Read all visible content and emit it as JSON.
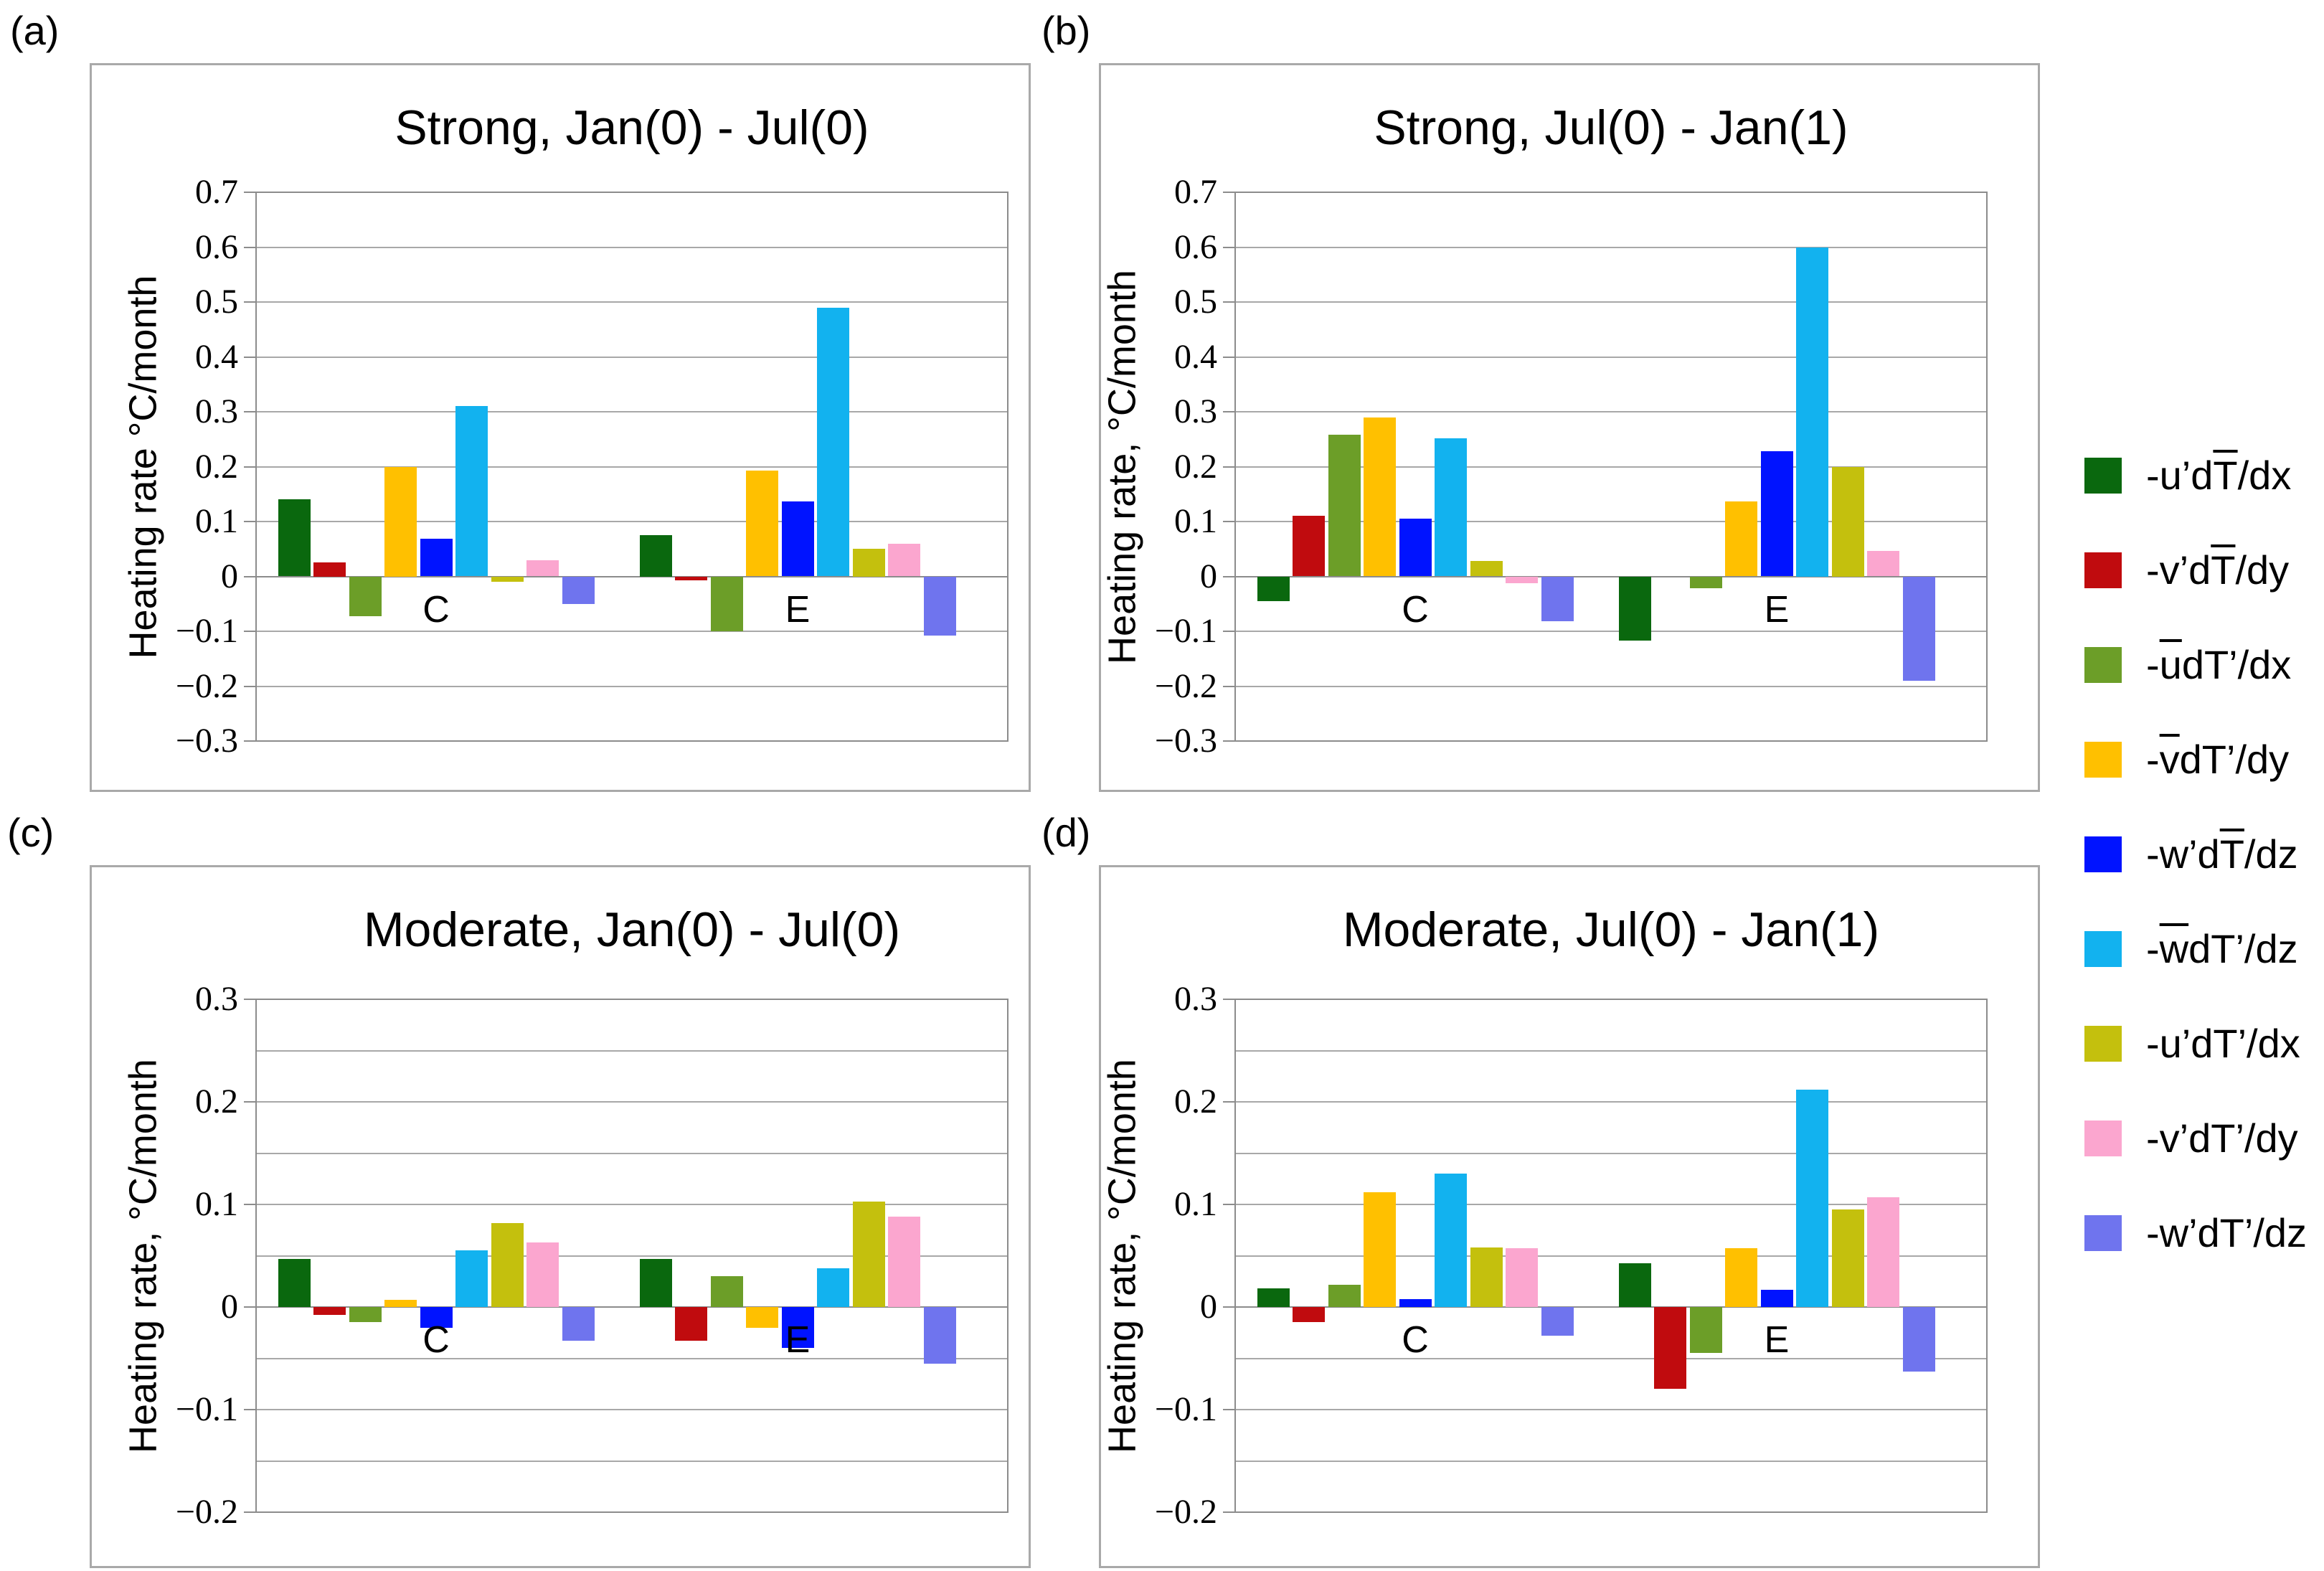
{
  "figure": {
    "background": "#ffffff",
    "gridline_color": "#a8a8a8",
    "axis_color": "#8c8c8c",
    "panel_border_color": "#a9a9a9"
  },
  "chart_data": {
    "type": "bar",
    "legend_position": "right",
    "grid": true,
    "categories": [
      "C",
      "E"
    ],
    "series": [
      {
        "name": "-u’dT̅/dx",
        "color": "#0A680E",
        "label_parts": [
          {
            "t": "-u’d"
          },
          {
            "t": "T",
            "ob": true
          },
          {
            "t": "/dx"
          }
        ]
      },
      {
        "name": "-v’dT̅/dy",
        "color": "#C00B0E",
        "label_parts": [
          {
            "t": "-v’d"
          },
          {
            "t": "T",
            "ob": true
          },
          {
            "t": "/dy"
          }
        ]
      },
      {
        "name": "-u̅dT’/dx",
        "color": "#6C9E28",
        "label_parts": [
          {
            "t": "-"
          },
          {
            "t": "u",
            "ob": true
          },
          {
            "t": "dT’/dx"
          }
        ]
      },
      {
        "name": "-v̅dT’/dy",
        "color": "#FFC000",
        "label_parts": [
          {
            "t": "-"
          },
          {
            "t": "v",
            "ob": true
          },
          {
            "t": "dT’/dy"
          }
        ]
      },
      {
        "name": "-w’dT̅/dz",
        "color": "#0013FF",
        "label_parts": [
          {
            "t": "-w’d"
          },
          {
            "t": "T",
            "ob": true
          },
          {
            "t": "/dz"
          }
        ]
      },
      {
        "name": "-w̅dT’/dz",
        "color": "#12B2EF",
        "label_parts": [
          {
            "t": "-"
          },
          {
            "t": "w",
            "ob": true
          },
          {
            "t": "dT’/dz"
          }
        ]
      },
      {
        "name": "-u’dT’/dx",
        "color": "#C4C00D",
        "label_parts": [
          {
            "t": "-u’dT’/dx"
          }
        ]
      },
      {
        "name": "-v’dT’/dy",
        "color": "#FBA6CF",
        "label_parts": [
          {
            "t": "-v’dT’/dy"
          }
        ]
      },
      {
        "name": "-w’dT’/dz",
        "color": "#6F74EE",
        "label_parts": [
          {
            "t": "-w’dT’/dz"
          }
        ]
      }
    ],
    "panels": [
      {
        "id": "a",
        "label": "(a)",
        "title": "Strong, Jan(0) - Jul(0)",
        "ylabel": "Heating rate °C/month",
        "ylim": [
          -0.3,
          0.7
        ],
        "tick_step": 0.1,
        "grid_step": 0.1,
        "values": {
          "C": [
            0.14,
            0.025,
            -0.072,
            0.2,
            0.068,
            0.31,
            -0.01,
            0.03,
            -0.05
          ],
          "E": [
            0.075,
            -0.007,
            -0.1,
            0.193,
            0.137,
            0.49,
            0.05,
            0.06,
            -0.108
          ]
        }
      },
      {
        "id": "b",
        "label": "(b)",
        "title": "Strong, Jul(0) - Jan(1)",
        "ylabel": "Heating rate, °C/month",
        "ylim": [
          -0.3,
          0.7
        ],
        "tick_step": 0.1,
        "grid_step": 0.1,
        "values": {
          "C": [
            -0.045,
            0.11,
            0.258,
            0.29,
            0.105,
            0.252,
            0.028,
            -0.013,
            -0.082
          ],
          "E": [
            -0.117,
            0.0,
            -0.022,
            0.137,
            0.228,
            0.6,
            0.2,
            0.047,
            -0.19
          ]
        }
      },
      {
        "id": "c",
        "label": "(c)",
        "title": "Moderate, Jan(0) - Jul(0)",
        "ylabel": "Heating rate, °C/month",
        "ylim": [
          -0.2,
          0.3
        ],
        "tick_step": 0.1,
        "grid_step": 0.05,
        "values": {
          "C": [
            0.047,
            -0.008,
            -0.015,
            0.007,
            -0.02,
            0.055,
            0.082,
            0.063,
            -0.033
          ],
          "E": [
            0.047,
            -0.033,
            0.03,
            -0.02,
            -0.04,
            0.038,
            0.103,
            0.088,
            -0.055
          ]
        }
      },
      {
        "id": "d",
        "label": "(d)",
        "title": "Moderate, Jul(0) - Jan(1)",
        "ylabel": "Heating rate, °C/month",
        "ylim": [
          -0.2,
          0.3
        ],
        "tick_step": 0.1,
        "grid_step": 0.05,
        "values": {
          "C": [
            0.018,
            -0.015,
            0.022,
            0.112,
            0.008,
            0.13,
            0.058,
            0.057,
            -0.028
          ],
          "E": [
            0.043,
            -0.08,
            -0.045,
            0.057,
            0.017,
            0.212,
            0.095,
            0.107,
            -0.063
          ]
        }
      }
    ]
  }
}
